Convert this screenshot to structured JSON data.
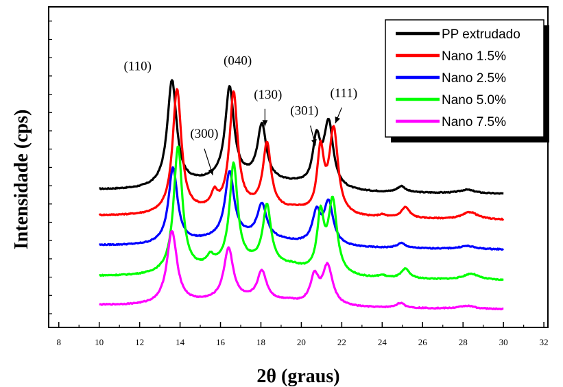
{
  "chart_data": {
    "type": "line",
    "xlabel": "2θ (graus)",
    "ylabel": "Intensidade (cps)",
    "xlim": [
      7.5,
      32.2
    ],
    "x_ticks": [
      8,
      10,
      12,
      14,
      16,
      18,
      20,
      22,
      24,
      26,
      28,
      30,
      32
    ],
    "grid": false,
    "legend_position": "top-right",
    "series": [
      {
        "name": "PP extrudado",
        "color": "#000000",
        "base": 195,
        "peaks": [
          [
            13.6,
            175,
            0.28
          ],
          [
            16.45,
            150,
            0.26
          ],
          [
            18.05,
            90,
            0.26
          ],
          [
            20.75,
            76,
            0.22
          ],
          [
            21.35,
            108,
            0.28
          ],
          [
            24.95,
            10,
            0.25
          ],
          [
            28.2,
            6,
            0.45
          ],
          [
            19.8,
            3,
            0.6
          ]
        ],
        "broad": [
          [
            17.0,
            20,
            3.2
          ]
        ]
      },
      {
        "name": "Nano 1.5%",
        "color": "#ff0000",
        "base": 152,
        "peaks": [
          [
            13.85,
            205,
            0.26
          ],
          [
            15.7,
            22,
            0.18
          ],
          [
            16.65,
            190,
            0.24
          ],
          [
            18.3,
            106,
            0.24
          ],
          [
            20.95,
            102,
            0.2
          ],
          [
            21.6,
            140,
            0.26
          ],
          [
            25.15,
            18,
            0.25
          ],
          [
            28.35,
            12,
            0.45
          ],
          [
            19.8,
            4,
            0.5
          ],
          [
            24.0,
            4,
            0.25
          ]
        ],
        "broad": [
          [
            17.3,
            14,
            3.2
          ]
        ]
      },
      {
        "name": "Nano 2.5%",
        "color": "#0000ff",
        "base": 103,
        "peaks": [
          [
            13.65,
            125,
            0.27
          ],
          [
            16.45,
            108,
            0.27
          ],
          [
            18.05,
            55,
            0.28
          ],
          [
            20.75,
            50,
            0.24
          ],
          [
            21.35,
            70,
            0.28
          ],
          [
            24.95,
            8,
            0.25
          ],
          [
            28.2,
            5,
            0.45
          ]
        ],
        "broad": [
          [
            17.2,
            15,
            3.0
          ]
        ]
      },
      {
        "name": "Nano 5.0%",
        "color": "#00ff00",
        "base": 52,
        "peaks": [
          [
            13.9,
            208,
            0.26
          ],
          [
            15.5,
            14,
            0.2
          ],
          [
            16.65,
            165,
            0.24
          ],
          [
            18.3,
            97,
            0.24
          ],
          [
            20.95,
            92,
            0.2
          ],
          [
            21.55,
            120,
            0.26
          ],
          [
            25.15,
            16,
            0.25
          ],
          [
            28.4,
            10,
            0.45
          ],
          [
            19.6,
            4,
            0.45
          ],
          [
            24.0,
            4,
            0.25
          ]
        ],
        "broad": [
          [
            17.5,
            22,
            3.2
          ]
        ]
      },
      {
        "name": "Nano 7.5%",
        "color": "#ff00ff",
        "base": 4,
        "peaks": [
          [
            13.6,
            120,
            0.3
          ],
          [
            16.4,
            85,
            0.28
          ],
          [
            18.05,
            48,
            0.28
          ],
          [
            20.65,
            45,
            0.25
          ],
          [
            21.3,
            65,
            0.3
          ],
          [
            24.9,
            8,
            0.25
          ],
          [
            28.2,
            5,
            0.45
          ],
          [
            19.4,
            4,
            0.5
          ]
        ],
        "broad": [
          [
            17.0,
            10,
            3.0
          ]
        ]
      }
    ],
    "peak_labels": [
      {
        "text": "(110)",
        "x": 11.9,
        "y": 393
      },
      {
        "text": "(040)",
        "x": 16.85,
        "y": 402
      },
      {
        "text": "(130)",
        "x": 18.35,
        "y": 346
      },
      {
        "text": "(300)",
        "x": 15.2,
        "y": 281
      },
      {
        "text": "(301)",
        "x": 20.15,
        "y": 319
      },
      {
        "text": "(111)",
        "x": 22.1,
        "y": 348
      }
    ],
    "arrows": [
      {
        "from": [
          18.2,
          329
        ],
        "to": [
          18.2,
          300
        ]
      },
      {
        "from": [
          15.2,
          263
        ],
        "to": [
          15.62,
          219
        ]
      },
      {
        "from": [
          20.45,
          301
        ],
        "to": [
          20.7,
          268
        ]
      },
      {
        "from": [
          22.0,
          331
        ],
        "to": [
          21.68,
          305
        ]
      }
    ]
  }
}
